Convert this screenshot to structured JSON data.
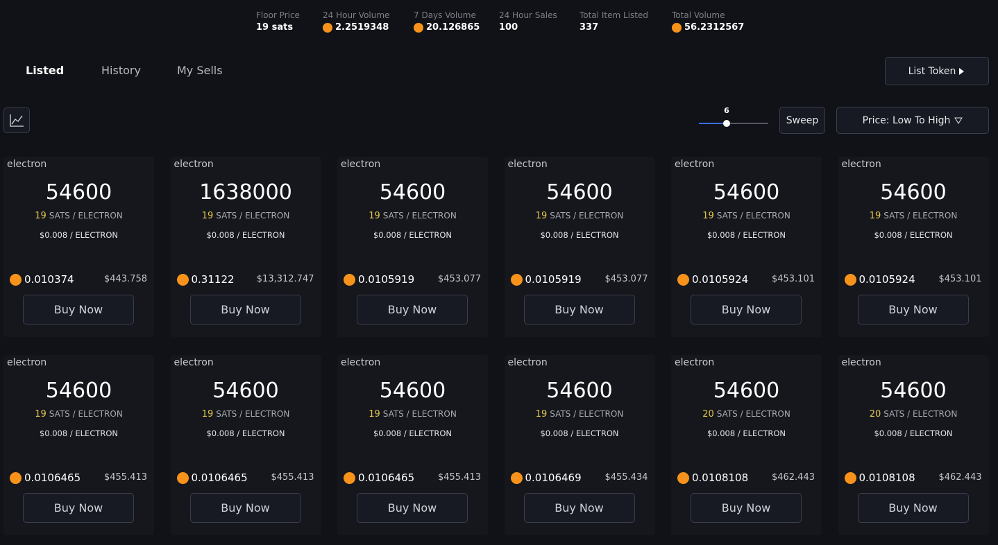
{
  "stats": [
    {
      "label": "Floor Price",
      "value": "19 sats"
    },
    {
      "label": "24 Hour Volume",
      "value": 2.2519348
    },
    {
      "label": "7 Days Volume",
      "value": 20.126865
    },
    {
      "label": "24 Hour Sales",
      "value": 100
    },
    {
      "label": "Total Item Listed",
      "value": 337
    },
    {
      "label": "Total Volume",
      "value": 56.2312567
    }
  ],
  "tabs": [
    "Listed",
    "History",
    "My Sells"
  ],
  "list_token": "List Token",
  "slider_value": 6,
  "sweep": "Sweep",
  "sort": "Price: Low To High",
  "cards": [
    {
      "ticker": "electron",
      "amount": 54600,
      "sats": 19,
      "unit": "SATS / ELECTRON",
      "usd_per": "$0.008 / ELECTRON",
      "btc": 0.010374,
      "usd": "$443.758",
      "button": "Buy Now"
    },
    {
      "ticker": "electron",
      "amount": 1638000,
      "sats": 19,
      "unit": "SATS / ELECTRON",
      "usd_per": "$0.008 / ELECTRON",
      "btc": 0.31122,
      "usd": "$13,312.747",
      "button": "Buy Now"
    },
    {
      "ticker": "electron",
      "amount": 54600,
      "sats": 19,
      "unit": "SATS / ELECTRON",
      "usd_per": "$0.008 / ELECTRON",
      "btc": 0.0105919,
      "usd": "$453.077",
      "button": "Buy Now"
    },
    {
      "ticker": "electron",
      "amount": 54600,
      "sats": 19,
      "unit": "SATS / ELECTRON",
      "usd_per": "$0.008 / ELECTRON",
      "btc": 0.0105919,
      "usd": "$453.077",
      "button": "Buy Now"
    },
    {
      "ticker": "electron",
      "amount": 54600,
      "sats": 19,
      "unit": "SATS / ELECTRON",
      "usd_per": "$0.008 / ELECTRON",
      "btc": 0.0105924,
      "usd": "$453.101",
      "button": "Buy Now"
    },
    {
      "ticker": "electron",
      "amount": 54600,
      "sats": 19,
      "unit": "SATS / ELECTRON",
      "usd_per": "$0.008 / ELECTRON",
      "btc": 0.0105924,
      "usd": "$453.101",
      "button": "Buy Now"
    },
    {
      "ticker": "electron",
      "amount": 54600,
      "sats": 19,
      "unit": "SATS / ELECTRON",
      "usd_per": "$0.008 / ELECTRON",
      "btc": 0.0106465,
      "usd": "$455.413",
      "button": "Buy Now"
    },
    {
      "ticker": "electron",
      "amount": 54600,
      "sats": 19,
      "unit": "SATS / ELECTRON",
      "usd_per": "$0.008 / ELECTRON",
      "btc": 0.0106465,
      "usd": "$455.413",
      "button": "Buy Now"
    },
    {
      "ticker": "electron",
      "amount": 54600,
      "sats": 19,
      "unit": "SATS / ELECTRON",
      "usd_per": "$0.008 / ELECTRON",
      "btc": 0.0106465,
      "usd": "$455.413",
      "button": "Buy Now"
    },
    {
      "ticker": "electron",
      "amount": 54600,
      "sats": 19,
      "unit": "SATS / ELECTRON",
      "usd_per": "$0.008 / ELECTRON",
      "btc": 0.0106469,
      "usd": "$455.434",
      "button": "Buy Now"
    },
    {
      "ticker": "electron",
      "amount": 54600,
      "sats": 20,
      "unit": "SATS / ELECTRON",
      "usd_per": "$0.008 / ELECTRON",
      "btc": 0.0108108,
      "usd": "$462.443",
      "button": "Buy Now"
    },
    {
      "ticker": "electron",
      "amount": 54600,
      "sats": 20,
      "unit": "SATS / ELECTRON",
      "usd_per": "$0.008 / ELECTRON",
      "btc": 0.0108108,
      "usd": "$462.443",
      "button": "Buy Now"
    }
  ]
}
